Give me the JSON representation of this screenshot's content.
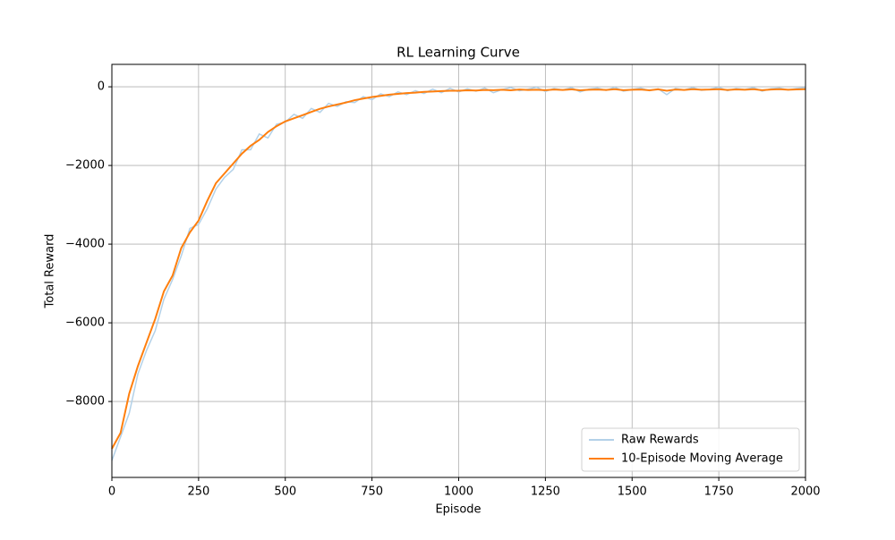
{
  "chart_data": {
    "type": "line",
    "title": "RL Learning Curve",
    "x_label": "Episode",
    "y_label": "Total Reward",
    "x": [
      0,
      25,
      50,
      75,
      100,
      125,
      150,
      175,
      200,
      225,
      250,
      275,
      300,
      325,
      350,
      375,
      400,
      425,
      450,
      475,
      500,
      525,
      550,
      575,
      600,
      625,
      650,
      675,
      700,
      725,
      750,
      775,
      800,
      825,
      850,
      875,
      900,
      925,
      950,
      975,
      1000,
      1025,
      1050,
      1075,
      1100,
      1125,
      1150,
      1175,
      1200,
      1225,
      1250,
      1275,
      1300,
      1325,
      1350,
      1375,
      1400,
      1425,
      1450,
      1475,
      1500,
      1525,
      1550,
      1575,
      1600,
      1625,
      1650,
      1675,
      1700,
      1725,
      1750,
      1775,
      1800,
      1825,
      1850,
      1875,
      1900,
      1925,
      1950,
      1975,
      2000
    ],
    "series": [
      {
        "name": "Raw Rewards",
        "color": "#b3d1e8",
        "values": [
          -9500,
          -8900,
          -8300,
          -7300,
          -6700,
          -6200,
          -5400,
          -4900,
          -4300,
          -3600,
          -3500,
          -3100,
          -2600,
          -2300,
          -2100,
          -1600,
          -1600,
          -1200,
          -1300,
          -950,
          -900,
          -700,
          -800,
          -550,
          -650,
          -420,
          -500,
          -380,
          -400,
          -250,
          -330,
          -180,
          -250,
          -130,
          -200,
          -100,
          -170,
          -60,
          -150,
          -40,
          -130,
          -50,
          -110,
          -30,
          -150,
          -70,
          -20,
          -100,
          -60,
          -10,
          -120,
          -40,
          -80,
          -20,
          -130,
          -60,
          -30,
          -90,
          -10,
          -110,
          -70,
          -30,
          -100,
          -50,
          -200,
          -40,
          -80,
          -20,
          -90,
          -60,
          -10,
          -100,
          -40,
          -70,
          -20,
          -110,
          -50,
          -30,
          -80,
          -40,
          -20
        ]
      },
      {
        "name": "10-Episode Moving Average",
        "color": "#ff7f0e",
        "values": [
          -9200,
          -8800,
          -7800,
          -7100,
          -6500,
          -5900,
          -5200,
          -4800,
          -4100,
          -3700,
          -3400,
          -2900,
          -2450,
          -2200,
          -1950,
          -1700,
          -1500,
          -1350,
          -1150,
          -1000,
          -880,
          -800,
          -720,
          -640,
          -560,
          -500,
          -450,
          -400,
          -340,
          -300,
          -260,
          -230,
          -200,
          -180,
          -160,
          -150,
          -130,
          -120,
          -110,
          -100,
          -100,
          -90,
          -95,
          -80,
          -85,
          -75,
          -90,
          -70,
          -80,
          -75,
          -85,
          -70,
          -80,
          -65,
          -90,
          -75,
          -70,
          -80,
          -60,
          -85,
          -75,
          -70,
          -90,
          -65,
          -100,
          -70,
          -80,
          -60,
          -75,
          -70,
          -60,
          -80,
          -65,
          -75,
          -60,
          -85,
          -70,
          -60,
          -75,
          -65,
          -60
        ]
      }
    ],
    "xlim": [
      0,
      2000
    ],
    "xticks": [
      0,
      250,
      500,
      750,
      1000,
      1250,
      1500,
      1750,
      2000
    ],
    "ylim": [
      -9930,
      570
    ],
    "yticks": [
      {
        "value": -8000,
        "label": "−8000"
      },
      {
        "value": -6000,
        "label": "−6000"
      },
      {
        "value": -4000,
        "label": "−4000"
      },
      {
        "value": -2000,
        "label": "−2000"
      },
      0
    ],
    "grid": true,
    "legend": "lower right"
  }
}
